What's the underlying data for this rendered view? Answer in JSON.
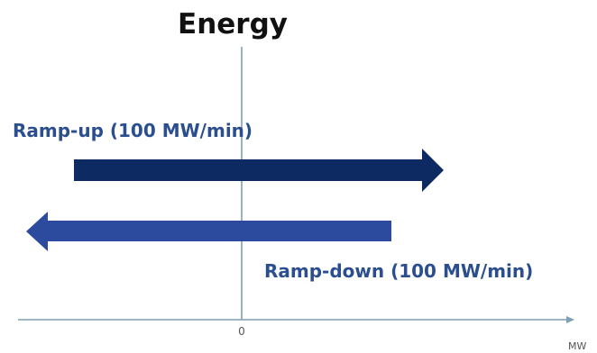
{
  "title": "Energy",
  "ramp_up": {
    "label": "Ramp-up (100 MW/min)",
    "direction": "right"
  },
  "ramp_down": {
    "label": "Ramp-down (100 MW/min)",
    "direction": "left"
  },
  "axis": {
    "origin_label": "0",
    "x_unit_label": "MW"
  },
  "colors": {
    "title": "#111111",
    "ramp_up_arrow": "#0d2a63",
    "ramp_down_arrow": "#2c4a9e",
    "label_text": "#2b4f8e",
    "axis": "#7f9fb2",
    "tick_text": "#555555"
  }
}
